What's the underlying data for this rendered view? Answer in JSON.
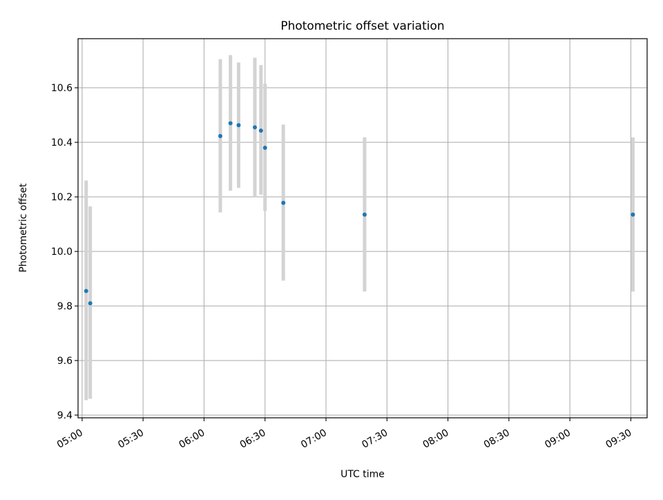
{
  "chart_data": {
    "type": "scatter",
    "title": "Photometric offset variation",
    "xlabel": "UTC time",
    "ylabel": "Photometric offset",
    "xlim": [
      "04:58",
      "09:38"
    ],
    "ylim": [
      9.39,
      10.78
    ],
    "grid": true,
    "legend": "none",
    "x_ticks": [
      "05:00",
      "05:30",
      "06:00",
      "06:30",
      "07:00",
      "07:30",
      "08:00",
      "08:30",
      "09:00",
      "09:30"
    ],
    "y_ticks": [
      9.4,
      9.6,
      9.8,
      10.0,
      10.2,
      10.4,
      10.6
    ],
    "y_tick_labels": [
      "9.4",
      "9.6",
      "9.8",
      "10.0",
      "10.2",
      "10.4",
      "10.6"
    ],
    "series": [
      {
        "point_color": "#1f77b4",
        "errorbar_color": "#d3d3d3",
        "points": [
          {
            "x": "05:02",
            "y": 9.855,
            "err_low": 9.455,
            "err_high": 10.26
          },
          {
            "x": "05:04",
            "y": 9.81,
            "err_low": 9.46,
            "err_high": 10.165
          },
          {
            "x": "06:08",
            "y": 10.423,
            "err_low": 10.143,
            "err_high": 10.705
          },
          {
            "x": "06:13",
            "y": 10.47,
            "err_low": 10.223,
            "err_high": 10.72
          },
          {
            "x": "06:17",
            "y": 10.463,
            "err_low": 10.233,
            "err_high": 10.693
          },
          {
            "x": "06:25",
            "y": 10.455,
            "err_low": 10.2,
            "err_high": 10.71
          },
          {
            "x": "06:28",
            "y": 10.443,
            "err_low": 10.208,
            "err_high": 10.683
          },
          {
            "x": "06:30",
            "y": 10.38,
            "err_low": 10.148,
            "err_high": 10.615
          },
          {
            "x": "06:39",
            "y": 10.178,
            "err_low": 9.893,
            "err_high": 10.465
          },
          {
            "x": "07:19",
            "y": 10.135,
            "err_low": 9.853,
            "err_high": 10.418
          },
          {
            "x": "09:31",
            "y": 10.135,
            "err_low": 9.853,
            "err_high": 10.418
          }
        ]
      }
    ]
  }
}
